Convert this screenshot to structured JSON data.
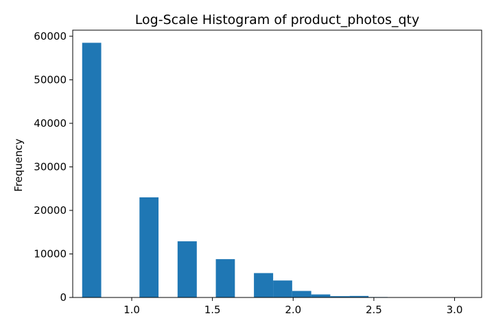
{
  "chart_data": {
    "type": "bar",
    "title": "Log-Scale Histogram of product_photos_qty",
    "xlabel": "",
    "ylabel": "Frequency",
    "bar_color": "#1f77b4",
    "xlim": [
      0.6345,
      3.1677
    ],
    "ylim": [
      0,
      61400
    ],
    "grid": false,
    "x_ticks": [
      {
        "value": 1.0,
        "label": "1.0"
      },
      {
        "value": 1.5,
        "label": "1.5"
      },
      {
        "value": 2.0,
        "label": "2.0"
      },
      {
        "value": 2.5,
        "label": "2.5"
      },
      {
        "value": 3.0,
        "label": "3.0"
      }
    ],
    "y_ticks": [
      {
        "value": 0,
        "label": "0"
      },
      {
        "value": 10000,
        "label": "10000"
      },
      {
        "value": 20000,
        "label": "20000"
      },
      {
        "value": 30000,
        "label": "30000"
      },
      {
        "value": 40000,
        "label": "40000"
      },
      {
        "value": 50000,
        "label": "50000"
      },
      {
        "value": 60000,
        "label": "60000"
      }
    ],
    "bins": [
      {
        "x0": 0.693,
        "x1": 0.811,
        "count": 58500
      },
      {
        "x0": 0.811,
        "x1": 0.93,
        "count": 0
      },
      {
        "x0": 0.93,
        "x1": 1.048,
        "count": 0
      },
      {
        "x0": 1.048,
        "x1": 1.166,
        "count": 23000
      },
      {
        "x0": 1.166,
        "x1": 1.284,
        "count": 0
      },
      {
        "x0": 1.284,
        "x1": 1.403,
        "count": 12900
      },
      {
        "x0": 1.403,
        "x1": 1.521,
        "count": 0
      },
      {
        "x0": 1.521,
        "x1": 1.639,
        "count": 8800
      },
      {
        "x0": 1.639,
        "x1": 1.757,
        "count": 0
      },
      {
        "x0": 1.757,
        "x1": 1.876,
        "count": 5600
      },
      {
        "x0": 1.876,
        "x1": 1.994,
        "count": 3900
      },
      {
        "x0": 1.994,
        "x1": 2.112,
        "count": 1500
      },
      {
        "x0": 2.112,
        "x1": 2.23,
        "count": 700
      },
      {
        "x0": 2.23,
        "x1": 2.349,
        "count": 300
      },
      {
        "x0": 2.349,
        "x1": 2.467,
        "count": 350
      },
      {
        "x0": 2.467,
        "x1": 2.585,
        "count": 100
      },
      {
        "x0": 2.585,
        "x1": 2.703,
        "count": 70
      },
      {
        "x0": 2.703,
        "x1": 2.822,
        "count": 50
      },
      {
        "x0": 2.822,
        "x1": 2.94,
        "count": 40
      },
      {
        "x0": 2.94,
        "x1": 3.058,
        "count": 60
      }
    ]
  }
}
